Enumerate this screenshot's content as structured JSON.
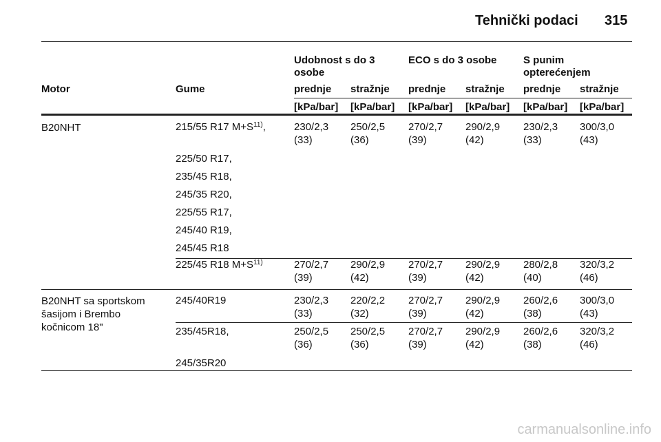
{
  "header": {
    "title": "Tehnički podaci",
    "page": "315"
  },
  "table": {
    "group_headers": [
      "Udobnost s do 3 osobe",
      "ECO s do 3 osobe",
      "S punim opterećenjem"
    ],
    "columns": [
      "Motor",
      "Gume",
      "prednje",
      "stražnje",
      "prednje",
      "stražnje",
      "prednje",
      "stražnje"
    ],
    "units": [
      "[kPa/bar]",
      "[kPa/bar]",
      "[kPa/bar]",
      "[kPa/bar]",
      "[kPa/bar]",
      "[kPa/bar]"
    ],
    "rows": [
      {
        "motor": "B20NHT",
        "tyres": [
          {
            "text": "215/55 R17 M+S",
            "note": "11)",
            "tail": ","
          },
          "225/50 R17,",
          "235/45 R18,",
          "245/35 R20,",
          "225/55 R17,",
          "245/40 R19,",
          "245/45 R18"
        ],
        "values": [
          [
            "230/2,3",
            "(33)"
          ],
          [
            "250/2,5",
            "(36)"
          ],
          [
            "270/2,7",
            "(39)"
          ],
          [
            "290/2,9",
            "(42)"
          ],
          [
            "230/2,3",
            "(33)"
          ],
          [
            "300/3,0",
            "(43)"
          ]
        ]
      },
      {
        "tyres": [
          {
            "text": "225/45 R18 M+S",
            "note": "11)"
          }
        ],
        "values": [
          [
            "270/2,7",
            "(39)"
          ],
          [
            "290/2,9",
            "(42)"
          ],
          [
            "270/2,7",
            "(39)"
          ],
          [
            "290/2,9",
            "(42)"
          ],
          [
            "280/2,8",
            "(40)"
          ],
          [
            "320/3,2",
            "(46)"
          ]
        ]
      },
      {
        "motor": "B20NHT sa sportskom šasijom i Brembo kočnicom 18\"",
        "tyres": [
          "245/40R19"
        ],
        "values": [
          [
            "230/2,3",
            "(33)"
          ],
          [
            "220/2,2",
            "(32)"
          ],
          [
            "270/2,7",
            "(39)"
          ],
          [
            "290/2,9",
            "(42)"
          ],
          [
            "260/2,6",
            "(38)"
          ],
          [
            "300/3,0",
            "(43)"
          ]
        ]
      },
      {
        "tyres": [
          "235/45R18,",
          "245/35R20"
        ],
        "values": [
          [
            "250/2,5",
            "(36)"
          ],
          [
            "250/2,5",
            "(36)"
          ],
          [
            "270/2,7",
            "(39)"
          ],
          [
            "290/2,9",
            "(42)"
          ],
          [
            "260/2,6",
            "(38)"
          ],
          [
            "320/3,2",
            "(46)"
          ]
        ]
      }
    ]
  },
  "watermark": "carmanualsonline.info"
}
